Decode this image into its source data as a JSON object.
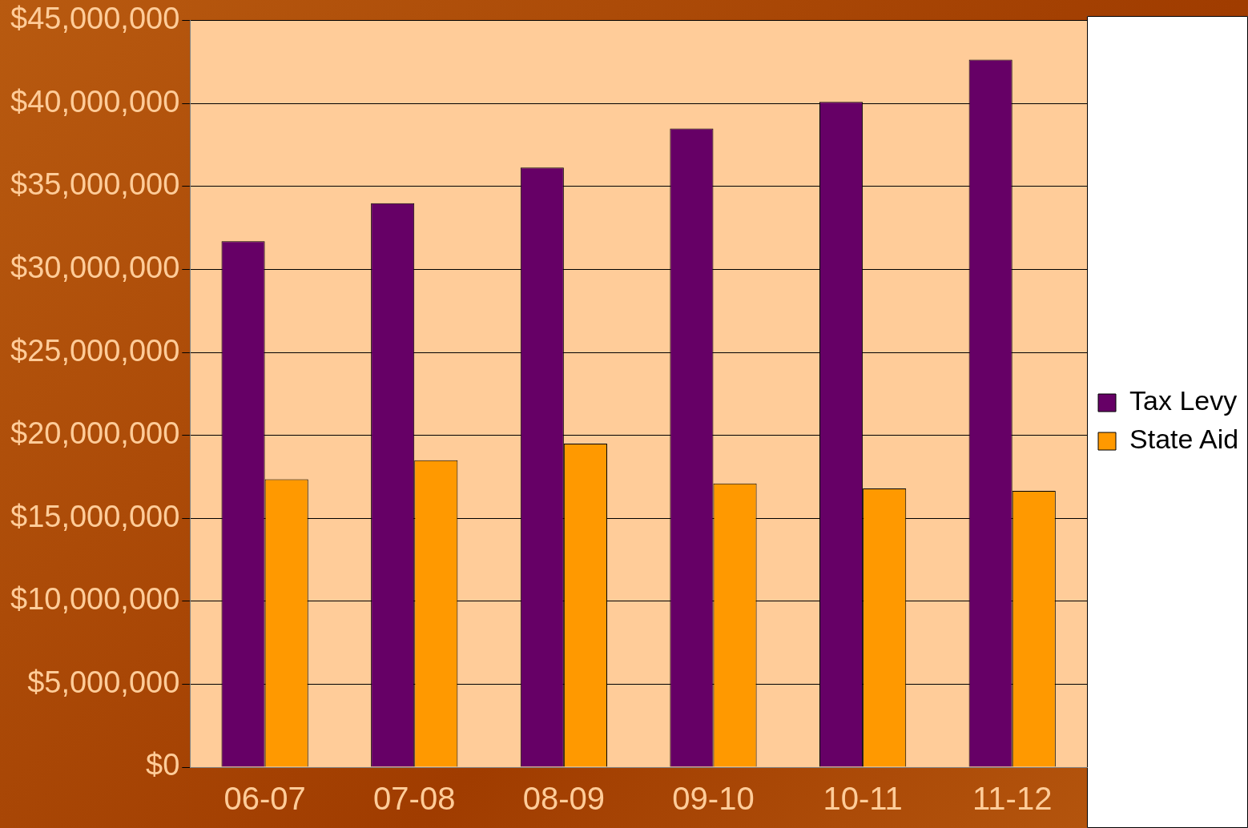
{
  "chart_data": {
    "type": "bar",
    "categories": [
      "06-07",
      "07-08",
      "08-09",
      "09-10",
      "10-11",
      "11-12"
    ],
    "series": [
      {
        "name": "Tax Levy",
        "color": "#660066",
        "values": [
          31700000,
          34000000,
          36150000,
          38500000,
          40100000,
          42650000
        ]
      },
      {
        "name": "State Aid",
        "color": "#ff9900",
        "values": [
          17350000,
          18500000,
          19500000,
          17100000,
          16800000,
          16650000
        ]
      }
    ],
    "ylim": [
      0,
      45000000
    ],
    "yticks": [
      {
        "value": 0,
        "label": "$0"
      },
      {
        "value": 5000000,
        "label": "$5,000,000"
      },
      {
        "value": 10000000,
        "label": "$10,000,000"
      },
      {
        "value": 15000000,
        "label": "$15,000,000"
      },
      {
        "value": 20000000,
        "label": "$20,000,000"
      },
      {
        "value": 25000000,
        "label": "$25,000,000"
      },
      {
        "value": 30000000,
        "label": "$30,000,000"
      },
      {
        "value": 35000000,
        "label": "$35,000,000"
      },
      {
        "value": 40000000,
        "label": "$40,000,000"
      },
      {
        "value": 45000000,
        "label": "$45,000,000"
      }
    ],
    "grid": "y",
    "legend": "right"
  }
}
